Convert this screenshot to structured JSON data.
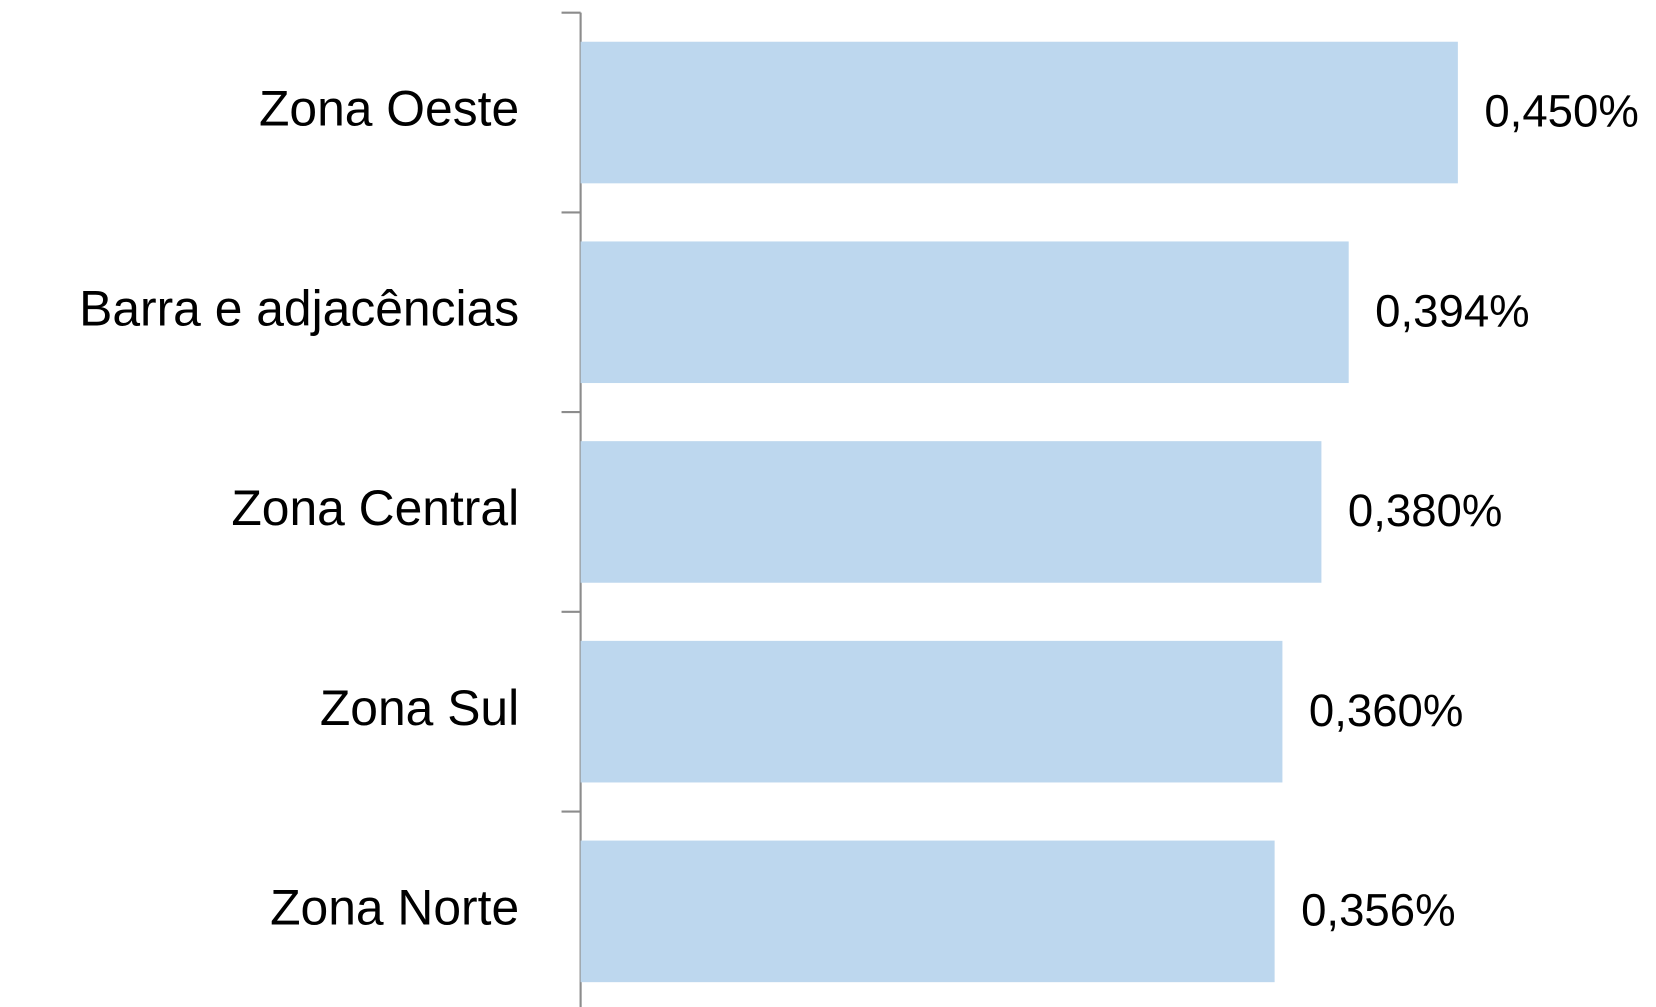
{
  "chart_data": {
    "type": "bar",
    "orientation": "horizontal",
    "categories": [
      "Zona Oeste",
      "Barra e adjacências",
      "Zona Central",
      "Zona Sul",
      "Zona Norte"
    ],
    "values": [
      0.45,
      0.394,
      0.38,
      0.36,
      0.356
    ],
    "value_labels": [
      "0,450%",
      "0,394%",
      "0,380%",
      "0,360%",
      "0,356%"
    ],
    "color": "#bdd7ee"
  }
}
